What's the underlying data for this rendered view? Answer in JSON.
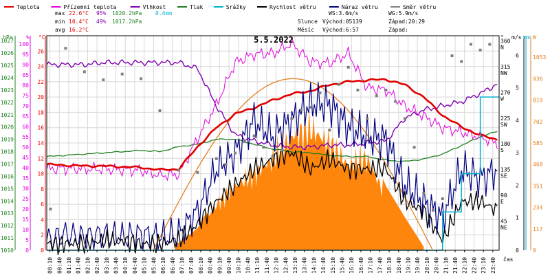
{
  "chart_data": {
    "type": "line",
    "title": "5.5.2022",
    "legend": [
      {
        "label": "Teplota",
        "color": "#e00000"
      },
      {
        "label": "Přízemní teplota",
        "color": "#e000e0"
      },
      {
        "label": "Vlhkost",
        "color": "#8000b0"
      },
      {
        "label": "Tlak",
        "color": "#208020"
      },
      {
        "label": "Srážky",
        "color": "#00b0d0"
      },
      {
        "label": "Rychlost větru",
        "color": "#000000"
      },
      {
        "label": "Náraz větru",
        "color": "#000080"
      },
      {
        "label": "Směr větru",
        "color": "#808080"
      }
    ],
    "stats": {
      "max": {
        "label": "max",
        "temp": "22.6°C",
        "hum": "95%",
        "press": "1020.2hPa",
        "rain": "0.4mm"
      },
      "min": {
        "label": "min",
        "temp": "10.4°C",
        "hum": "49%",
        "press": "1017.2hPa"
      },
      "avg": {
        "label": "avg",
        "temp": "16.2°C"
      }
    },
    "astro": {
      "ws": "WS:3.6m/s",
      "wg": "WG:5.9m/s",
      "sun_label": "Slunce",
      "sunrise": "Východ:05139",
      "sunset": "Západ:20:29",
      "moon_label": "Měsíc",
      "moonrise": "Východ:6:57",
      "moonset": "Západ:"
    },
    "axis_units": {
      "press": "hPa",
      "hum": "%",
      "temp": "°C",
      "dir": "°",
      "wind": "m/s",
      "rain": "mm",
      "solar": "W",
      "time": "čas"
    },
    "time_ticks": [
      "00:10",
      "00:40",
      "01:10",
      "01:40",
      "02:10",
      "02:40",
      "03:10",
      "03:40",
      "04:10",
      "04:40",
      "05:10",
      "05:40",
      "06:10",
      "06:40",
      "07:10",
      "07:40",
      "08:10",
      "08:40",
      "09:10",
      "09:40",
      "10:10",
      "10:40",
      "11:10",
      "11:40",
      "12:10",
      "12:40",
      "13:10",
      "13:40",
      "14:10",
      "14:40",
      "15:10",
      "15:40",
      "16:10",
      "16:40",
      "17:10",
      "17:40",
      "18:10",
      "18:40",
      "19:10",
      "19:40",
      "20:10",
      "20:40",
      "21:10",
      "21:40",
      "22:10",
      "22:40",
      "23:10",
      "23:40"
    ],
    "pressure_ticks": [
      1010,
      1011,
      1012,
      1013,
      1014,
      1015,
      1016,
      1017,
      1018,
      1019,
      1020,
      1021,
      1022,
      1023,
      1024,
      1025,
      1026,
      1027
    ],
    "humidity_ticks": [
      0,
      5,
      10,
      15,
      20,
      25,
      30,
      35,
      40,
      45,
      50,
      55,
      60,
      65,
      70,
      75,
      80,
      85,
      90,
      95,
      100
    ],
    "temp_ticks": [
      0,
      2,
      4,
      6,
      8,
      10,
      12,
      14,
      16,
      18,
      20,
      22,
      24,
      26
    ],
    "dir_ticks": [
      {
        "value": 360,
        "label": "360",
        "dir": "N"
      },
      {
        "value": 315,
        "label": "315",
        "dir": "NW"
      },
      {
        "value": 270,
        "label": "270",
        "dir": "W"
      },
      {
        "value": 225,
        "label": "225",
        "dir": "SW"
      },
      {
        "value": 180,
        "label": "180",
        "dir": "S"
      },
      {
        "value": 135,
        "label": "135",
        "dir": "SE"
      },
      {
        "value": 90,
        "label": "90",
        "dir": "E"
      },
      {
        "value": 45,
        "label": "45",
        "dir": "NE"
      }
    ],
    "wind_ticks": [
      0,
      1,
      2,
      3,
      4,
      5,
      6
    ],
    "solar_ticks": [
      0,
      117,
      234,
      351,
      468,
      585,
      702,
      819,
      936,
      1053
    ],
    "x": [
      0,
      1,
      2,
      3,
      4,
      5,
      6,
      7,
      8,
      9,
      10,
      11,
      12,
      13,
      14,
      15,
      16,
      17,
      18,
      19,
      20,
      21,
      22,
      23,
      24
    ],
    "series": [
      {
        "name": "Teplota",
        "unit": "°C",
        "values": [
          11.2,
          11.1,
          11.0,
          11.0,
          10.9,
          10.8,
          10.5,
          10.6,
          13.5,
          16.0,
          17.8,
          18.6,
          19.6,
          20.4,
          20.8,
          21.6,
          22.0,
          22.2,
          22.3,
          21.6,
          20.0,
          17.6,
          16.1,
          15.0,
          14.4
        ]
      },
      {
        "name": "Přízemní teplota",
        "unit": "°C",
        "values": [
          10.6,
          10.7,
          10.6,
          10.6,
          10.5,
          10.4,
          9.8,
          9.9,
          14.6,
          19.0,
          24.5,
          25.6,
          25.7,
          27.0,
          24.6,
          24.4,
          25.7,
          21.2,
          20.9,
          18.8,
          17.5,
          16.0,
          15.4,
          14.8,
          13.8
        ]
      },
      {
        "name": "Vlhkost",
        "unit": "%",
        "values": [
          90,
          90,
          90,
          91,
          91,
          91,
          91,
          91,
          88,
          70,
          56,
          53,
          51,
          50,
          50,
          51,
          51,
          52,
          53,
          64,
          68,
          70,
          72,
          76,
          81
        ]
      },
      {
        "name": "Tlak",
        "unit": "hPa",
        "values": [
          1017.6,
          1017.7,
          1017.8,
          1017.9,
          1018.0,
          1018.1,
          1018.0,
          1018.4,
          1018.6,
          1019.0,
          1019.0,
          1018.6,
          1018.2,
          1018.0,
          1017.9,
          1017.7,
          1017.6,
          1017.6,
          1017.3,
          1017.2,
          1017.4,
          1017.8,
          1018.5,
          1019.2,
          1019.7
        ]
      },
      {
        "name": "Rychlost větru",
        "unit": "m/s",
        "values": [
          0.2,
          0.2,
          0.2,
          0.3,
          0.3,
          0.2,
          0.2,
          0.3,
          0.8,
          1.5,
          2.0,
          2.5,
          2.8,
          3.0,
          2.5,
          2.8,
          2.5,
          2.5,
          2.5,
          1.5,
          1.2,
          0.3,
          1.5,
          1.5,
          1.2
        ]
      },
      {
        "name": "Náraz větru",
        "unit": "m/s",
        "values": [
          0.3,
          0.5,
          0.4,
          0.5,
          0.4,
          0.5,
          0.4,
          0.5,
          1.2,
          2.5,
          3.0,
          4.0,
          3.5,
          4.0,
          4.5,
          4.5,
          3.8,
          3.5,
          3.4,
          2.0,
          1.5,
          1.0,
          2.5,
          2.2,
          2.5
        ]
      },
      {
        "name": "Srážky",
        "unit": "mm",
        "values": [
          0,
          0,
          0,
          0,
          0,
          0,
          0,
          0,
          0,
          0,
          0,
          0,
          0,
          0,
          0,
          0,
          0,
          0,
          0,
          0,
          0,
          0.1,
          0.2,
          0.4,
          0.4
        ]
      }
    ],
    "solar": {
      "unit": "W",
      "max_value": 936,
      "rise_hour": 5.65,
      "set_hour": 20.48
    },
    "solar_measured": {
      "name": "Sluneční záření",
      "unit": "W",
      "x": [
        5,
        6,
        7,
        8,
        9,
        10,
        11,
        12,
        13,
        14,
        15,
        16,
        17,
        18,
        19,
        20
      ],
      "values": [
        0,
        10,
        40,
        120,
        300,
        420,
        500,
        600,
        750,
        800,
        700,
        560,
        600,
        350,
        180,
        20
      ]
    },
    "wind_dir": {
      "name": "Směr větru",
      "unit": "°",
      "x": [
        0.2,
        1,
        2,
        3,
        4,
        5,
        6,
        7,
        8,
        9,
        9.5,
        10,
        10.5,
        11,
        11.5,
        12,
        12.5,
        13,
        13.5,
        14,
        14.5,
        15,
        15.5,
        16,
        16.5,
        17,
        17.5,
        18,
        18.5,
        19,
        19.5,
        20,
        20.5,
        21,
        21.5,
        22,
        22.5,
        23,
        23.5
      ],
      "values": [
        72,
        353,
        312,
        298,
        308,
        300,
        244,
        140,
        136,
        160,
        150,
        170,
        190,
        200,
        180,
        165,
        175,
        230,
        245,
        250,
        275,
        210,
        290,
        320,
        280,
        230,
        270,
        280,
        260,
        230,
        180,
        100,
        70,
        90,
        340,
        330,
        360,
        350,
        360
      ]
    }
  }
}
